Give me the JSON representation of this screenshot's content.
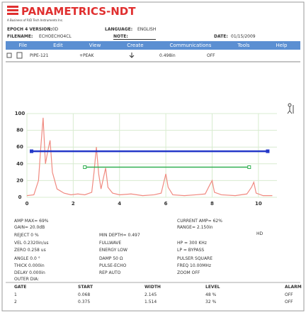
{
  "header": {
    "brand": "PANAMETRICS-NDT",
    "tagline": "A Business of R/D Tech Instruments Inc.",
    "version_label": "EPOCH 4 VERSION:",
    "version": "1.0D",
    "language_label": "LANGUAGE:",
    "language": "ENGLISH",
    "filename_label": "FILENAME:",
    "filename": "ECHOECHO4CL",
    "note_label": "NOTE:",
    "date_label": "DATE:",
    "date": "01/15/2009"
  },
  "menu": [
    "File",
    "Edit",
    "View",
    "Create",
    "Communications",
    "Tools",
    "Help"
  ],
  "toolbar": {
    "pipe": "PIPE-121",
    "mode": "+PEAK",
    "reading": "0.498in",
    "alarm": "OFF"
  },
  "ascan": {
    "type": "line",
    "color": "#f08a80",
    "x": [
      0,
      0.3,
      0.5,
      0.6,
      0.7,
      0.8,
      0.9,
      1.0,
      1.1,
      1.3,
      1.6,
      1.9,
      2.2,
      2.5,
      2.8,
      2.9,
      3.0,
      3.1,
      3.2,
      3.4,
      3.5,
      3.7,
      4.0,
      4.5,
      5.0,
      5.5,
      5.8,
      6.0,
      6.1,
      6.3,
      6.8,
      7.3,
      7.7,
      7.9,
      8.0,
      8.1,
      8.4,
      9.0,
      9.5,
      9.7,
      9.8,
      9.9,
      10.2,
      10.6
    ],
    "values": [
      2,
      3,
      20,
      60,
      95,
      40,
      55,
      68,
      30,
      10,
      5,
      3,
      4,
      3,
      6,
      30,
      60,
      28,
      10,
      35,
      12,
      5,
      3,
      4,
      2,
      3,
      5,
      28,
      12,
      3,
      2,
      3,
      4,
      15,
      20,
      6,
      3,
      2,
      4,
      12,
      18,
      5,
      2,
      2
    ],
    "xlim": [
      0,
      10.8
    ],
    "ylim": [
      0,
      100
    ],
    "xticks": [
      0,
      2,
      4,
      6,
      8,
      10
    ],
    "yticks": [
      0,
      20,
      40,
      60,
      80,
      100
    ],
    "grid": true,
    "gates": [
      {
        "x": [
          0.2,
          10.4
        ],
        "level": 55,
        "color": "#2438c8"
      },
      {
        "x": [
          2.5,
          9.6
        ],
        "level": 36,
        "color": "#30b050"
      }
    ]
  },
  "readouts": [
    [
      "AMP MAX= 69%",
      "GAIN= 20.0dB",
      "REJECT 0 %",
      "VEL 0.2320in/us",
      "ZERO 0.258 us",
      "ANGLE 0.0 °",
      "THICK 0.000in",
      "DELAY 0.000in",
      "OUTER DIA:"
    ],
    [
      "MIN DEPTH= 0.497",
      "FULLWAVE",
      "ENERGY LOW",
      "DAMP 50 Ω",
      "PULSE-ECHO",
      "REP AUTO"
    ],
    [
      "CURRENT AMP= 62%",
      "RANGE= 2.150in",
      "HP = 300 KHz",
      "LP = BYPASS",
      "PULSER SQUARE",
      "FREQ 10.00MHz",
      "ZOOM OFF"
    ]
  ],
  "hd": "HD",
  "gate_table": {
    "columns": [
      "GATE",
      "START",
      "WIDTH",
      "LEVEL",
      "ALARM"
    ],
    "rows": [
      [
        "1",
        "0.068",
        "2.145",
        "48 %",
        "OFF"
      ],
      [
        "2",
        "0.375",
        "1.514",
        "32 %",
        "OFF"
      ]
    ]
  }
}
